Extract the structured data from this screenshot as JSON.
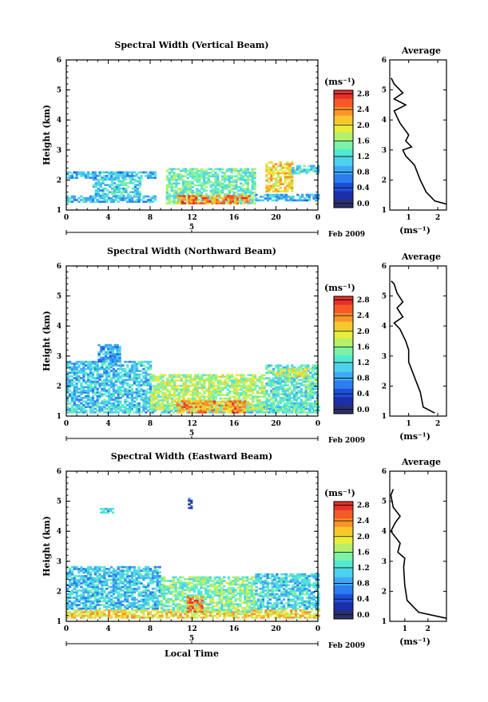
{
  "chart_data": [
    {
      "type": "heatmap",
      "title": "Spectral Width (Vertical Beam)",
      "ylabel": "Height (km)",
      "xlabel": "",
      "x_ticks": [
        "0",
        "4",
        "8",
        "12",
        "16",
        "20",
        "0"
      ],
      "y_ticks": [
        "1",
        "2",
        "3",
        "4",
        "5",
        "6"
      ],
      "ylim": [
        1,
        6
      ],
      "xlim": [
        0,
        24
      ],
      "date_day": "5",
      "date_month": "Feb 2009",
      "colorbar": {
        "unit": "(ms⁻¹)",
        "ticks": [
          "0.0",
          "0.4",
          "0.8",
          "1.2",
          "1.6",
          "2.0",
          "2.4",
          "2.8"
        ],
        "range": [
          0.0,
          3.0
        ]
      },
      "patches": [
        {
          "t0": 0.0,
          "t1": 8.5,
          "h0": 1.25,
          "h1": 1.45,
          "v": 1.1
        },
        {
          "t0": 0.0,
          "t1": 8.5,
          "h0": 2.05,
          "h1": 2.25,
          "v": 1.0
        },
        {
          "t0": 2.5,
          "t1": 7.0,
          "h0": 1.45,
          "h1": 2.05,
          "v": 1.2
        },
        {
          "t0": 9.5,
          "t1": 18.0,
          "h0": 1.2,
          "h1": 2.4,
          "v": 1.5
        },
        {
          "t0": 10.5,
          "t1": 17.5,
          "h0": 1.2,
          "h1": 1.5,
          "v": 2.6
        },
        {
          "t0": 18.0,
          "t1": 24.0,
          "h0": 1.3,
          "h1": 1.5,
          "v": 1.0
        },
        {
          "t0": 19.0,
          "t1": 21.5,
          "h0": 1.6,
          "h1": 2.6,
          "v": 2.2
        },
        {
          "t0": 21.5,
          "t1": 24.0,
          "h0": 2.2,
          "h1": 2.5,
          "v": 1.3
        }
      ],
      "avg_profile": {
        "title": "Average",
        "xlabel": "(ms⁻¹)",
        "x_ticks": [
          "1",
          "2"
        ],
        "xlim": [
          0.35,
          2.3
        ],
        "y_ticks": [
          "1",
          "2",
          "3",
          "4",
          "5",
          "6"
        ],
        "points": [
          [
            2.3,
            1.2
          ],
          [
            1.9,
            1.3
          ],
          [
            1.6,
            1.6
          ],
          [
            1.4,
            2.0
          ],
          [
            1.2,
            2.5
          ],
          [
            0.9,
            2.8
          ],
          [
            0.8,
            3.0
          ],
          [
            1.1,
            3.1
          ],
          [
            0.9,
            3.3
          ],
          [
            1.0,
            3.5
          ],
          [
            0.7,
            3.9
          ],
          [
            0.5,
            4.3
          ],
          [
            0.9,
            4.5
          ],
          [
            0.5,
            4.7
          ],
          [
            0.8,
            4.9
          ],
          [
            0.5,
            5.2
          ],
          [
            0.4,
            5.4
          ]
        ]
      }
    },
    {
      "type": "heatmap",
      "title": "Spectral Width (Northward Beam)",
      "ylabel": "Height (km)",
      "xlabel": "",
      "x_ticks": [
        "0",
        "4",
        "8",
        "12",
        "16",
        "20",
        "0"
      ],
      "y_ticks": [
        "1",
        "2",
        "3",
        "4",
        "5",
        "6"
      ],
      "ylim": [
        1,
        6
      ],
      "xlim": [
        0,
        24
      ],
      "date_day": "5",
      "date_month": "Feb 2009",
      "colorbar": {
        "unit": "(ms⁻¹)",
        "ticks": [
          "0.0",
          "0.4",
          "0.8",
          "1.2",
          "1.6",
          "2.0",
          "2.4",
          "2.8"
        ],
        "range": [
          0.0,
          3.0
        ]
      },
      "patches": [
        {
          "t0": 0.0,
          "t1": 24.0,
          "h0": 1.1,
          "h1": 1.4,
          "v": 1.2
        },
        {
          "t0": 0.0,
          "t1": 8.0,
          "h0": 1.4,
          "h1": 2.8,
          "v": 1.1
        },
        {
          "t0": 3.0,
          "t1": 5.0,
          "h0": 2.8,
          "h1": 3.4,
          "v": 0.9
        },
        {
          "t0": 8.0,
          "t1": 19.0,
          "h0": 1.2,
          "h1": 2.4,
          "v": 1.8
        },
        {
          "t0": 10.5,
          "t1": 17.0,
          "h0": 1.1,
          "h1": 1.5,
          "v": 2.5
        },
        {
          "t0": 19.0,
          "t1": 24.0,
          "h0": 1.1,
          "h1": 2.7,
          "v": 1.4
        },
        {
          "t0": 20.0,
          "t1": 23.0,
          "h0": 2.3,
          "h1": 2.6,
          "v": 2.0
        }
      ],
      "avg_profile": {
        "title": "Average",
        "xlabel": "(ms⁻¹)",
        "x_ticks": [
          "1",
          "2"
        ],
        "xlim": [
          0.35,
          2.3
        ],
        "y_ticks": [
          "1",
          "2",
          "3",
          "4",
          "5",
          "6"
        ],
        "points": [
          [
            1.9,
            1.1
          ],
          [
            1.5,
            1.3
          ],
          [
            1.4,
            1.8
          ],
          [
            1.2,
            2.3
          ],
          [
            1.0,
            2.8
          ],
          [
            1.0,
            3.2
          ],
          [
            0.9,
            3.5
          ],
          [
            0.7,
            3.9
          ],
          [
            0.5,
            4.1
          ],
          [
            0.8,
            4.3
          ],
          [
            0.6,
            4.6
          ],
          [
            0.8,
            4.8
          ],
          [
            0.6,
            5.1
          ],
          [
            0.5,
            5.4
          ],
          [
            0.4,
            5.5
          ]
        ]
      }
    },
    {
      "type": "heatmap",
      "title": "Spectral Width (Eastward Beam)",
      "ylabel": "Height (km)",
      "xlabel": "Local Time",
      "x_ticks": [
        "0",
        "4",
        "8",
        "12",
        "16",
        "20",
        "0"
      ],
      "y_ticks": [
        "1",
        "2",
        "3",
        "4",
        "5",
        "6"
      ],
      "ylim": [
        1,
        6
      ],
      "xlim": [
        0,
        24
      ],
      "date_day": "5",
      "date_month": "Feb 2009",
      "colorbar": {
        "unit": "(ms⁻¹)",
        "ticks": [
          "0.0",
          "0.4",
          "0.8",
          "1.2",
          "1.6",
          "2.0",
          "2.4",
          "2.8"
        ],
        "range": [
          0.0,
          3.0
        ]
      },
      "patches": [
        {
          "t0": 0.0,
          "t1": 24.0,
          "h0": 1.1,
          "h1": 1.4,
          "v": 2.2
        },
        {
          "t0": 0.0,
          "t1": 9.0,
          "h0": 1.4,
          "h1": 2.8,
          "v": 1.1
        },
        {
          "t0": 9.0,
          "t1": 18.0,
          "h0": 1.3,
          "h1": 2.5,
          "v": 1.6
        },
        {
          "t0": 11.5,
          "t1": 13.0,
          "h0": 1.3,
          "h1": 1.8,
          "v": 2.7
        },
        {
          "t0": 18.0,
          "t1": 24.0,
          "h0": 1.4,
          "h1": 2.6,
          "v": 1.2
        },
        {
          "t0": 3.0,
          "t1": 4.5,
          "h0": 4.6,
          "h1": 4.75,
          "v": 1.2
        },
        {
          "t0": 11.6,
          "t1": 11.9,
          "h0": 4.75,
          "h1": 5.1,
          "v": 0.2
        }
      ],
      "avg_profile": {
        "title": "Average",
        "xlabel": "(ms⁻¹)",
        "x_ticks": [
          "1",
          "2"
        ],
        "xlim": [
          0.35,
          2.8
        ],
        "y_ticks": [
          "1",
          "2",
          "3",
          "4",
          "5",
          "6"
        ],
        "points": [
          [
            2.8,
            1.1
          ],
          [
            1.6,
            1.3
          ],
          [
            1.1,
            1.7
          ],
          [
            1.0,
            2.2
          ],
          [
            0.95,
            2.8
          ],
          [
            1.0,
            3.1
          ],
          [
            0.7,
            3.3
          ],
          [
            0.8,
            3.6
          ],
          [
            0.4,
            4.0
          ],
          [
            0.6,
            4.3
          ],
          [
            0.8,
            4.5
          ],
          [
            0.5,
            4.8
          ],
          [
            0.4,
            5.2
          ],
          [
            0.5,
            5.4
          ]
        ]
      }
    }
  ],
  "colors": {
    "scale": [
      "#2b2f6b",
      "#1c2fa8",
      "#1f4fd8",
      "#2c7df0",
      "#3fa8f5",
      "#4ed0ef",
      "#53e8d2",
      "#7df2a6",
      "#b4f06b",
      "#e8ec3c",
      "#f7c72d",
      "#f8942a",
      "#f35a28",
      "#e5302a"
    ],
    "line": "#000000"
  }
}
